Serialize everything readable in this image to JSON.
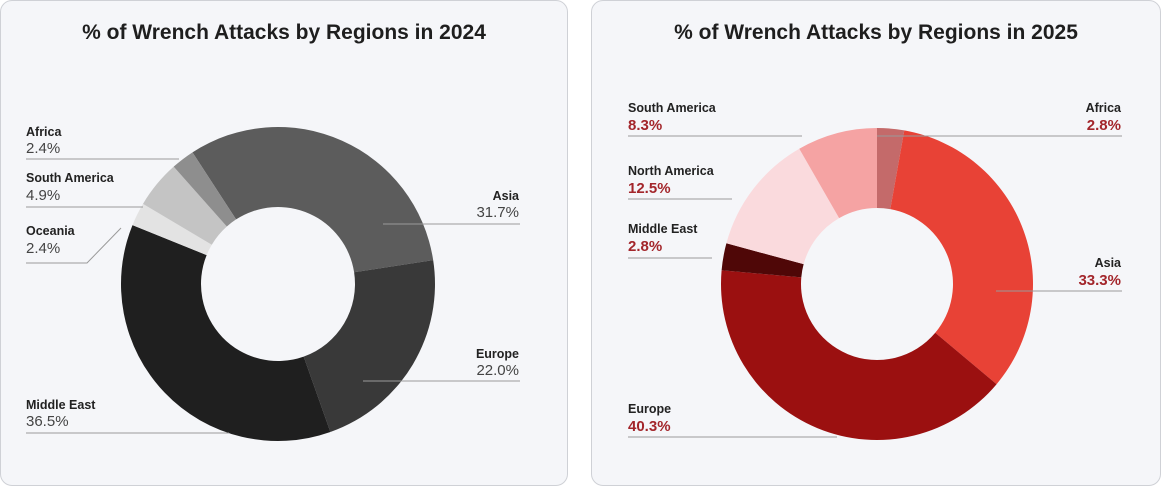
{
  "chart_data": [
    {
      "type": "pie",
      "title": "% of Wrench Attacks by Regions in 2024",
      "slices": [
        {
          "label": "Asia",
          "value": 31.7,
          "text": "31.7%",
          "color": "#5c5c5c"
        },
        {
          "label": "Europe",
          "value": 22.0,
          "text": "22.0%",
          "color": "#393939"
        },
        {
          "label": "Middle East",
          "value": 36.5,
          "text": "36.5%",
          "color": "#1f1f1f"
        },
        {
          "label": "Oceania",
          "value": 2.4,
          "text": "2.4%",
          "color": "#e3e3e3"
        },
        {
          "label": "South America",
          "value": 4.9,
          "text": "4.9%",
          "color": "#c4c4c4"
        },
        {
          "label": "Africa",
          "value": 2.4,
          "text": "2.4%",
          "color": "#8e8e8e"
        }
      ]
    },
    {
      "type": "pie",
      "title": "% of Wrench Attacks by Regions in 2025",
      "slices": [
        {
          "label": "Africa",
          "value": 2.8,
          "text": "2.8%",
          "color": "#c46a6a"
        },
        {
          "label": "Asia",
          "value": 33.3,
          "text": "33.3%",
          "color": "#e84236"
        },
        {
          "label": "Europe",
          "value": 40.3,
          "text": "40.3%",
          "color": "#9b1010"
        },
        {
          "label": "Middle East",
          "value": 2.8,
          "text": "2.8%",
          "color": "#4f0707"
        },
        {
          "label": "North America",
          "value": 12.5,
          "text": "12.5%",
          "color": "#fadadd"
        },
        {
          "label": "South America",
          "value": 8.3,
          "text": "8.3%",
          "color": "#f5a3a3"
        }
      ]
    }
  ]
}
